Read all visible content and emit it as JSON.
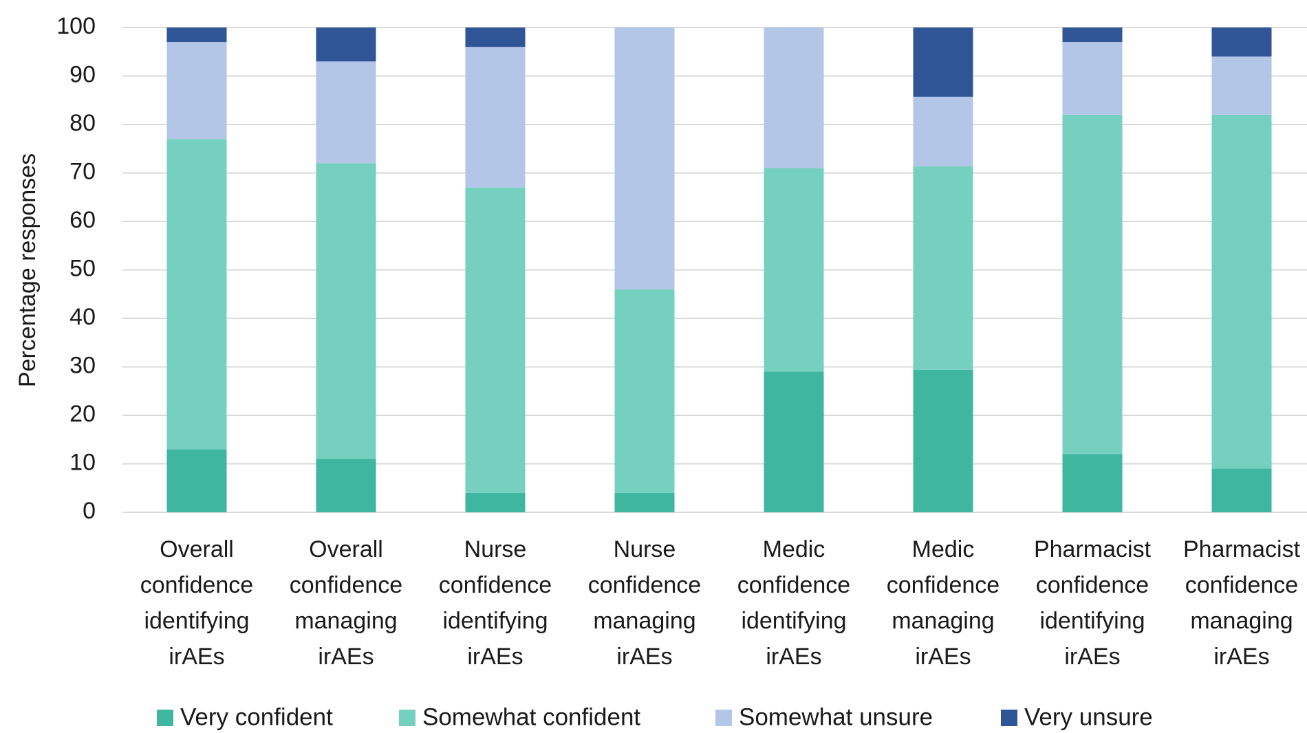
{
  "chart_data": {
    "type": "stacked_bar",
    "y_axis_label": "Percentage responses",
    "categories": [
      "Overall confidence identifying irAEs",
      "Overall confidence managing irAEs",
      "Nurse confidence identifying irAEs",
      "Nurse confidence managing irAEs",
      "Medic confidence identifying irAEs",
      "Medic confidence managing irAEs",
      "Pharmacist confidence identifying irAEs",
      "Pharmacist confidence managing irAEs"
    ],
    "series": [
      {
        "name": "Very confident",
        "color": "#3fb69f",
        "values": [
          13,
          11,
          4,
          4,
          29,
          29.4,
          12,
          9
        ]
      },
      {
        "name": "Somewhat confident",
        "color": "#76d0bf",
        "values": [
          64,
          61,
          63,
          42,
          42,
          42,
          70,
          73
        ]
      },
      {
        "name": "Somewhat unsure",
        "color": "#b4c6e7",
        "values": [
          20,
          21,
          29,
          54,
          29,
          14.3,
          15,
          12
        ]
      },
      {
        "name": "Very unsure",
        "color": "#2f5597",
        "values": [
          3,
          7,
          4,
          0,
          0,
          14.3,
          3,
          6
        ]
      }
    ],
    "ylim": [
      0,
      100
    ],
    "yticks": [
      0,
      10,
      20,
      30,
      40,
      50,
      60,
      70,
      80,
      90,
      100
    ],
    "grid": true,
    "legend": "bottom"
  }
}
